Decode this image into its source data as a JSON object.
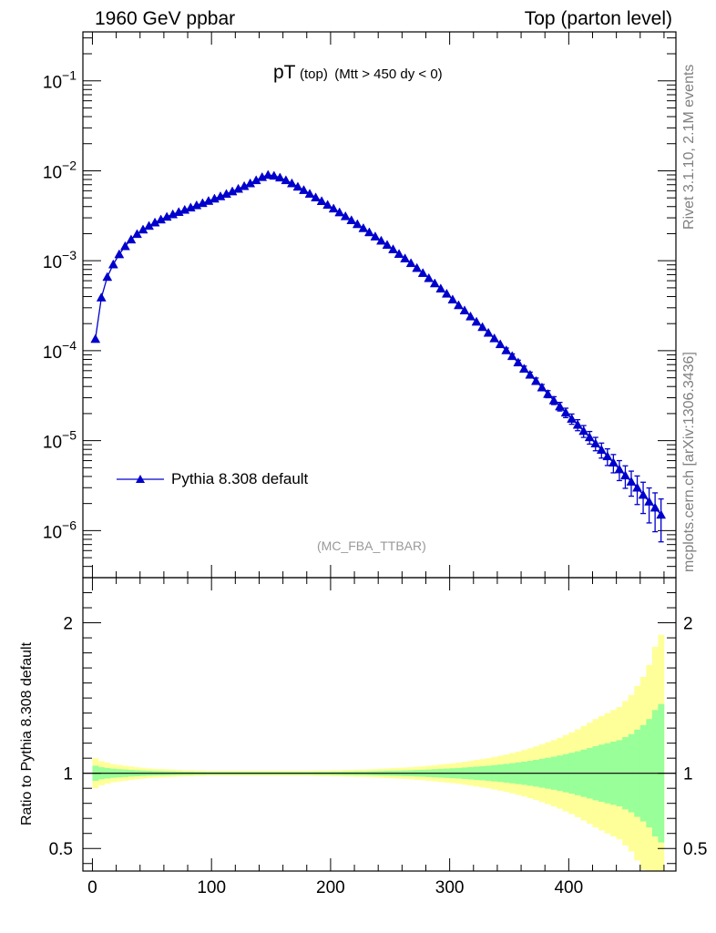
{
  "header": {
    "left": "1960 GeV ppbar",
    "right": "Top (parton level)"
  },
  "side": {
    "rivet": "Rivet 3.1.10,  2.1M events",
    "mcplots": "mcplots.cern.ch [arXiv:1306.3436]"
  },
  "plot_title": {
    "main": "pT",
    "sub1": "(top)",
    "sub2": "(Mtt > 450 dy < 0)"
  },
  "analysis_tag": "(MC_FBA_TTBAR)",
  "colors": {
    "series": "#0000cc",
    "band_outer": "#ffff99",
    "band_inner": "#99ff99",
    "side_text": "#808080"
  },
  "chart_data": [
    {
      "type": "line",
      "yscale": "log",
      "ylim": [
        3e-07,
        0.35
      ],
      "xlim": [
        -8,
        490
      ],
      "ytick_labels": [
        "10^-6",
        "10^-5",
        "10^-4",
        "10^-3",
        "10^-2",
        "10^-1"
      ],
      "legend": "middle-left",
      "series": [
        {
          "name": "Pythia 8.308 default",
          "x": [
            2.5,
            7.5,
            12.5,
            17.5,
            22.5,
            27.5,
            32.5,
            37.5,
            42.5,
            47.5,
            52.5,
            57.5,
            62.5,
            67.5,
            72.5,
            77.5,
            82.5,
            87.5,
            92.5,
            97.5,
            102.5,
            107.5,
            112.5,
            117.5,
            122.5,
            127.5,
            132.5,
            137.5,
            142.5,
            147.5,
            152.5,
            157.5,
            162.5,
            167.5,
            172.5,
            177.5,
            182.5,
            187.5,
            192.5,
            197.5,
            202.5,
            207.5,
            212.5,
            217.5,
            222.5,
            227.5,
            232.5,
            237.5,
            242.5,
            247.5,
            252.5,
            257.5,
            262.5,
            267.5,
            272.5,
            277.5,
            282.5,
            287.5,
            292.5,
            297.5,
            302.5,
            307.5,
            312.5,
            317.5,
            322.5,
            327.5,
            332.5,
            337.5,
            342.5,
            347.5,
            352.5,
            357.5,
            362.5,
            367.5,
            372.5,
            377.5,
            382.5,
            387.5,
            392.5,
            397.5,
            402.5,
            407.5,
            412.5,
            417.5,
            422.5,
            427.5,
            432.5,
            437.5,
            442.5,
            447.5,
            452.5,
            457.5,
            462.5,
            467.5,
            472.5,
            477.5
          ],
          "y": [
            0.000135,
            0.00039,
            0.00066,
            0.00091,
            0.00118,
            0.00145,
            0.00172,
            0.00198,
            0.00222,
            0.00244,
            0.00266,
            0.00287,
            0.00308,
            0.00328,
            0.00348,
            0.00368,
            0.0039,
            0.00413,
            0.00437,
            0.00462,
            0.0049,
            0.0052,
            0.00553,
            0.0059,
            0.0063,
            0.00675,
            0.00725,
            0.00785,
            0.0085,
            0.009,
            0.0088,
            0.0084,
            0.00785,
            0.00725,
            0.00665,
            0.0061,
            0.00555,
            0.00505,
            0.0046,
            0.00418,
            0.0038,
            0.00345,
            0.00312,
            0.00282,
            0.00255,
            0.0023,
            0.00207,
            0.00186,
            0.00167,
            0.0015,
            0.00134,
            0.00119,
            0.00106,
            0.00094,
            0.00083,
            0.00073,
            0.00064,
            0.00056,
            0.00049,
            0.00043,
            0.00037,
            0.00032,
            0.00028,
            0.00024,
            0.00021,
            0.000183,
            0.000158,
            0.000137,
            0.000118,
            0.000101,
            8.7e-05,
            7.4e-05,
            6.3e-05,
            5.4e-05,
            4.6e-05,
            3.9e-05,
            3.3e-05,
            2.8e-05,
            2.4e-05,
            2.05e-05,
            1.75e-05,
            1.5e-05,
            1.28e-05,
            1.09e-05,
            9.3e-06,
            7.9e-06,
            6.7e-06,
            5.7e-06,
            4.8e-06,
            4.1e-06,
            3.5e-06,
            3e-06,
            2.5e-06,
            2.1e-06,
            1.8e-06,
            1.5e-06
          ],
          "yerr_frac": [
            0.02,
            0.02,
            0.02,
            0.02,
            0.02,
            0.02,
            0.02,
            0.02,
            0.02,
            0.02,
            0.02,
            0.02,
            0.02,
            0.02,
            0.02,
            0.02,
            0.02,
            0.02,
            0.02,
            0.02,
            0.02,
            0.02,
            0.02,
            0.02,
            0.02,
            0.02,
            0.02,
            0.02,
            0.02,
            0.02,
            0.02,
            0.02,
            0.02,
            0.02,
            0.02,
            0.02,
            0.02,
            0.02,
            0.02,
            0.02,
            0.02,
            0.02,
            0.02,
            0.02,
            0.02,
            0.02,
            0.02,
            0.02,
            0.02,
            0.02,
            0.02,
            0.02,
            0.02,
            0.02,
            0.02,
            0.02,
            0.03,
            0.03,
            0.03,
            0.03,
            0.03,
            0.03,
            0.04,
            0.04,
            0.04,
            0.04,
            0.05,
            0.05,
            0.05,
            0.06,
            0.06,
            0.06,
            0.07,
            0.07,
            0.08,
            0.08,
            0.09,
            0.1,
            0.11,
            0.12,
            0.13,
            0.14,
            0.15,
            0.16,
            0.17,
            0.19,
            0.21,
            0.23,
            0.25,
            0.28,
            0.31,
            0.35,
            0.38,
            0.42,
            0.46,
            0.5
          ]
        }
      ]
    },
    {
      "type": "area",
      "ylabel": "Ratio to Pythia 8.308 default",
      "ylim": [
        0.35,
        2.3
      ],
      "xlim": [
        -8,
        490
      ],
      "xticks": [
        0,
        100,
        200,
        300,
        400
      ],
      "yticks": [
        0.5,
        1,
        2
      ],
      "ytick_labels": [
        "0.5",
        "1",
        "2"
      ],
      "series": [
        {
          "name": "band",
          "x": [
            2.5,
            7.5,
            12.5,
            17.5,
            22.5,
            27.5,
            32.5,
            37.5,
            42.5,
            47.5,
            52.5,
            57.5,
            62.5,
            67.5,
            72.5,
            77.5,
            82.5,
            87.5,
            92.5,
            97.5,
            102.5,
            107.5,
            112.5,
            117.5,
            122.5,
            127.5,
            132.5,
            137.5,
            142.5,
            147.5,
            152.5,
            157.5,
            162.5,
            167.5,
            172.5,
            177.5,
            182.5,
            187.5,
            192.5,
            197.5,
            202.5,
            207.5,
            212.5,
            217.5,
            222.5,
            227.5,
            232.5,
            237.5,
            242.5,
            247.5,
            252.5,
            257.5,
            262.5,
            267.5,
            272.5,
            277.5,
            282.5,
            287.5,
            292.5,
            297.5,
            302.5,
            307.5,
            312.5,
            317.5,
            322.5,
            327.5,
            332.5,
            337.5,
            342.5,
            347.5,
            352.5,
            357.5,
            362.5,
            367.5,
            372.5,
            377.5,
            382.5,
            387.5,
            392.5,
            397.5,
            402.5,
            407.5,
            412.5,
            417.5,
            422.5,
            427.5,
            432.5,
            437.5,
            442.5,
            447.5,
            452.5,
            457.5,
            462.5,
            467.5,
            472.5,
            477.5
          ],
          "inner_frac": [
            0.05,
            0.04,
            0.035,
            0.03,
            0.027,
            0.025,
            0.022,
            0.02,
            0.018,
            0.016,
            0.015,
            0.014,
            0.013,
            0.012,
            0.011,
            0.01,
            0.01,
            0.009,
            0.009,
            0.008,
            0.008,
            0.008,
            0.008,
            0.008,
            0.008,
            0.008,
            0.008,
            0.008,
            0.008,
            0.008,
            0.008,
            0.008,
            0.008,
            0.008,
            0.008,
            0.008,
            0.008,
            0.009,
            0.009,
            0.009,
            0.01,
            0.01,
            0.011,
            0.011,
            0.012,
            0.012,
            0.013,
            0.014,
            0.015,
            0.016,
            0.017,
            0.018,
            0.019,
            0.02,
            0.022,
            0.023,
            0.025,
            0.027,
            0.029,
            0.031,
            0.033,
            0.035,
            0.038,
            0.041,
            0.044,
            0.047,
            0.05,
            0.054,
            0.058,
            0.062,
            0.067,
            0.072,
            0.077,
            0.083,
            0.089,
            0.096,
            0.103,
            0.11,
            0.118,
            0.127,
            0.136,
            0.146,
            0.157,
            0.168,
            0.18,
            0.19,
            0.2,
            0.21,
            0.22,
            0.24,
            0.26,
            0.29,
            0.32,
            0.36,
            0.42,
            0.46
          ],
          "outer_frac": [
            0.1,
            0.08,
            0.07,
            0.06,
            0.055,
            0.05,
            0.045,
            0.04,
            0.036,
            0.032,
            0.03,
            0.028,
            0.026,
            0.024,
            0.022,
            0.02,
            0.02,
            0.018,
            0.018,
            0.016,
            0.016,
            0.016,
            0.016,
            0.016,
            0.016,
            0.016,
            0.016,
            0.016,
            0.016,
            0.016,
            0.016,
            0.016,
            0.016,
            0.016,
            0.016,
            0.016,
            0.016,
            0.018,
            0.018,
            0.018,
            0.02,
            0.02,
            0.022,
            0.022,
            0.024,
            0.024,
            0.026,
            0.028,
            0.03,
            0.032,
            0.034,
            0.036,
            0.038,
            0.04,
            0.044,
            0.046,
            0.05,
            0.054,
            0.058,
            0.062,
            0.066,
            0.07,
            0.076,
            0.082,
            0.088,
            0.094,
            0.1,
            0.108,
            0.116,
            0.124,
            0.134,
            0.144,
            0.154,
            0.166,
            0.178,
            0.192,
            0.206,
            0.22,
            0.236,
            0.254,
            0.272,
            0.292,
            0.314,
            0.336,
            0.36,
            0.38,
            0.4,
            0.42,
            0.44,
            0.48,
            0.52,
            0.58,
            0.64,
            0.72,
            0.84,
            0.92
          ]
        }
      ]
    }
  ]
}
